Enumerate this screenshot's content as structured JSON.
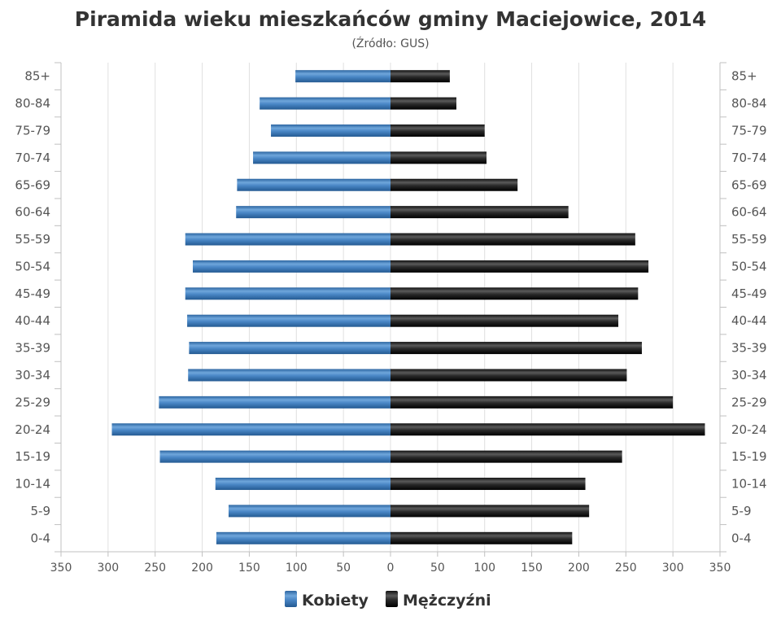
{
  "chart_data": {
    "type": "bar",
    "orientation": "horizontal",
    "layout": "population-pyramid",
    "title": "Piramida wieku mieszkańców gminy Maciejowice, 2014",
    "subtitle": "(Źródło: GUS)",
    "categories": [
      "85+",
      "80-84",
      "75-79",
      "70-74",
      "65-69",
      "60-64",
      "55-59",
      "50-54",
      "45-49",
      "40-44",
      "35-39",
      "30-34",
      "25-29",
      "20-24",
      "15-19",
      "10-14",
      "5-9",
      "0-4"
    ],
    "series": [
      {
        "name": "Kobiety",
        "side": "left",
        "color": "#3d7ab8",
        "values": [
          101,
          139,
          127,
          146,
          163,
          164,
          218,
          210,
          218,
          216,
          214,
          215,
          246,
          296,
          245,
          186,
          172,
          185
        ]
      },
      {
        "name": "Mężczyźni",
        "side": "right",
        "color": "#1a1a1a",
        "values": [
          63,
          70,
          100,
          102,
          135,
          189,
          260,
          274,
          263,
          242,
          267,
          251,
          300,
          334,
          246,
          207,
          211,
          193
        ]
      }
    ],
    "xlim": [
      -350,
      350
    ],
    "xticks": [
      "350",
      "300",
      "250",
      "200",
      "150",
      "100",
      "50",
      "0",
      "50",
      "100",
      "150",
      "200",
      "250",
      "300",
      "350"
    ],
    "grid": true,
    "legend": "bottom-center"
  }
}
